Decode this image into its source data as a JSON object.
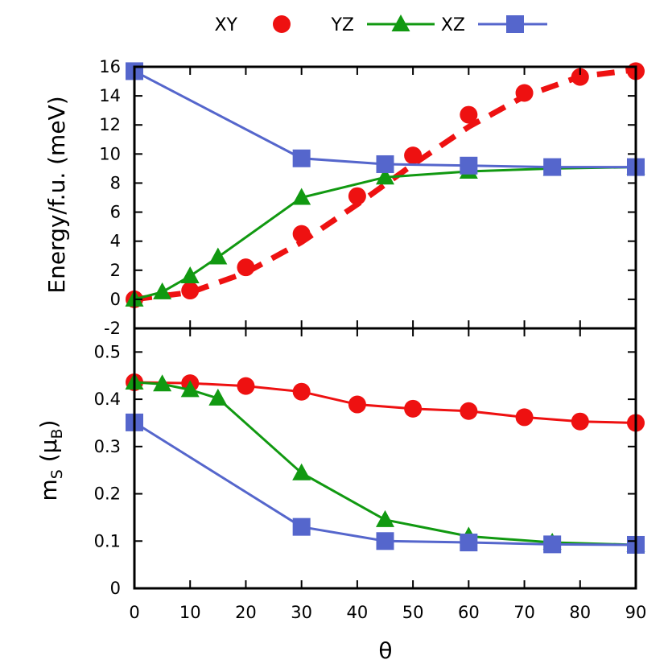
{
  "chart_data": [
    {
      "panel": "energy",
      "type": "line",
      "title": "",
      "xlabel": "",
      "ylabel": "Energy/f.u. (meV)",
      "xlim": [
        0,
        90
      ],
      "ylim": [
        -2,
        16
      ],
      "yticks": [
        -2,
        0,
        2,
        4,
        6,
        8,
        10,
        12,
        14,
        16
      ],
      "ytick_labels": [
        "-2",
        "0",
        "2",
        "4",
        "6",
        "8",
        "10",
        "12",
        "14",
        "16"
      ],
      "grid": false,
      "series": [
        {
          "name": "XY",
          "color": "#ee1111",
          "marker": "circle",
          "line": "none",
          "x": [
            0,
            10,
            20,
            30,
            40,
            50,
            60,
            70,
            80,
            90
          ],
          "y": [
            0,
            0.6,
            2.2,
            4.5,
            7.1,
            9.9,
            12.7,
            14.2,
            15.3,
            15.7
          ],
          "fit_line": {
            "style": "dashed",
            "x": [
              0,
              10,
              20,
              30,
              40,
              50,
              60,
              70,
              80,
              90
            ],
            "y": [
              0,
              0.47,
              1.83,
              3.93,
              6.53,
              9.27,
              11.87,
              13.97,
              15.33,
              15.8
            ]
          }
        },
        {
          "name": "YZ",
          "color": "#119911",
          "marker": "triangle",
          "line": "solid",
          "x": [
            0,
            5,
            10,
            15,
            30,
            45,
            60,
            75,
            90
          ],
          "y": [
            0,
            0.5,
            1.6,
            2.9,
            7.0,
            8.4,
            8.8,
            9.0,
            9.1
          ]
        },
        {
          "name": "XZ",
          "color": "#5566cc",
          "marker": "square",
          "line": "solid",
          "x": [
            0,
            30,
            45,
            60,
            75,
            90
          ],
          "y": [
            15.7,
            9.7,
            9.3,
            9.2,
            9.1,
            9.1
          ]
        }
      ]
    },
    {
      "panel": "moment",
      "type": "line",
      "title": "",
      "xlabel": "θ",
      "ylabel_main": "m",
      "ylabel_sub": "S",
      "ylabel_open": " (μ",
      "ylabel_sub2": "B",
      "ylabel_close": ")",
      "xlim": [
        0,
        90
      ],
      "xticks": [
        0,
        10,
        20,
        30,
        40,
        50,
        60,
        70,
        80,
        90
      ],
      "xtick_labels": [
        "0",
        "10",
        "20",
        "30",
        "40",
        "50",
        "60",
        "70",
        "80",
        "90"
      ],
      "ylim": [
        0,
        0.55
      ],
      "yticks": [
        0,
        0.1,
        0.2,
        0.3,
        0.4,
        0.5
      ],
      "ytick_labels": [
        "0",
        "0.1",
        "0.2",
        "0.3",
        "0.4",
        "0.5"
      ],
      "grid": false,
      "series": [
        {
          "name": "XY",
          "color": "#ee1111",
          "marker": "circle",
          "line": "solid",
          "x": [
            0,
            10,
            20,
            30,
            40,
            50,
            60,
            70,
            80,
            90
          ],
          "y": [
            0.436,
            0.434,
            0.428,
            0.416,
            0.389,
            0.38,
            0.375,
            0.362,
            0.353,
            0.35
          ]
        },
        {
          "name": "YZ",
          "color": "#119911",
          "marker": "triangle",
          "line": "solid",
          "x": [
            0,
            5,
            10,
            15,
            30,
            45,
            60,
            75,
            90
          ],
          "y": [
            0.436,
            0.432,
            0.42,
            0.402,
            0.244,
            0.145,
            0.11,
            0.097,
            0.092
          ]
        },
        {
          "name": "XZ",
          "color": "#5566cc",
          "marker": "square",
          "line": "solid",
          "x": [
            0,
            30,
            45,
            60,
            75,
            90
          ],
          "y": [
            0.351,
            0.13,
            0.1,
            0.097,
            0.093,
            0.092
          ]
        }
      ]
    }
  ],
  "legend": {
    "placement": "top-center",
    "items": [
      {
        "label": "XY",
        "color": "#ee1111",
        "marker": "circle",
        "line": "none"
      },
      {
        "label": "YZ",
        "color": "#119911",
        "marker": "triangle",
        "line": "solid"
      },
      {
        "label": "XZ",
        "color": "#5566cc",
        "marker": "square",
        "line": "solid"
      }
    ]
  }
}
